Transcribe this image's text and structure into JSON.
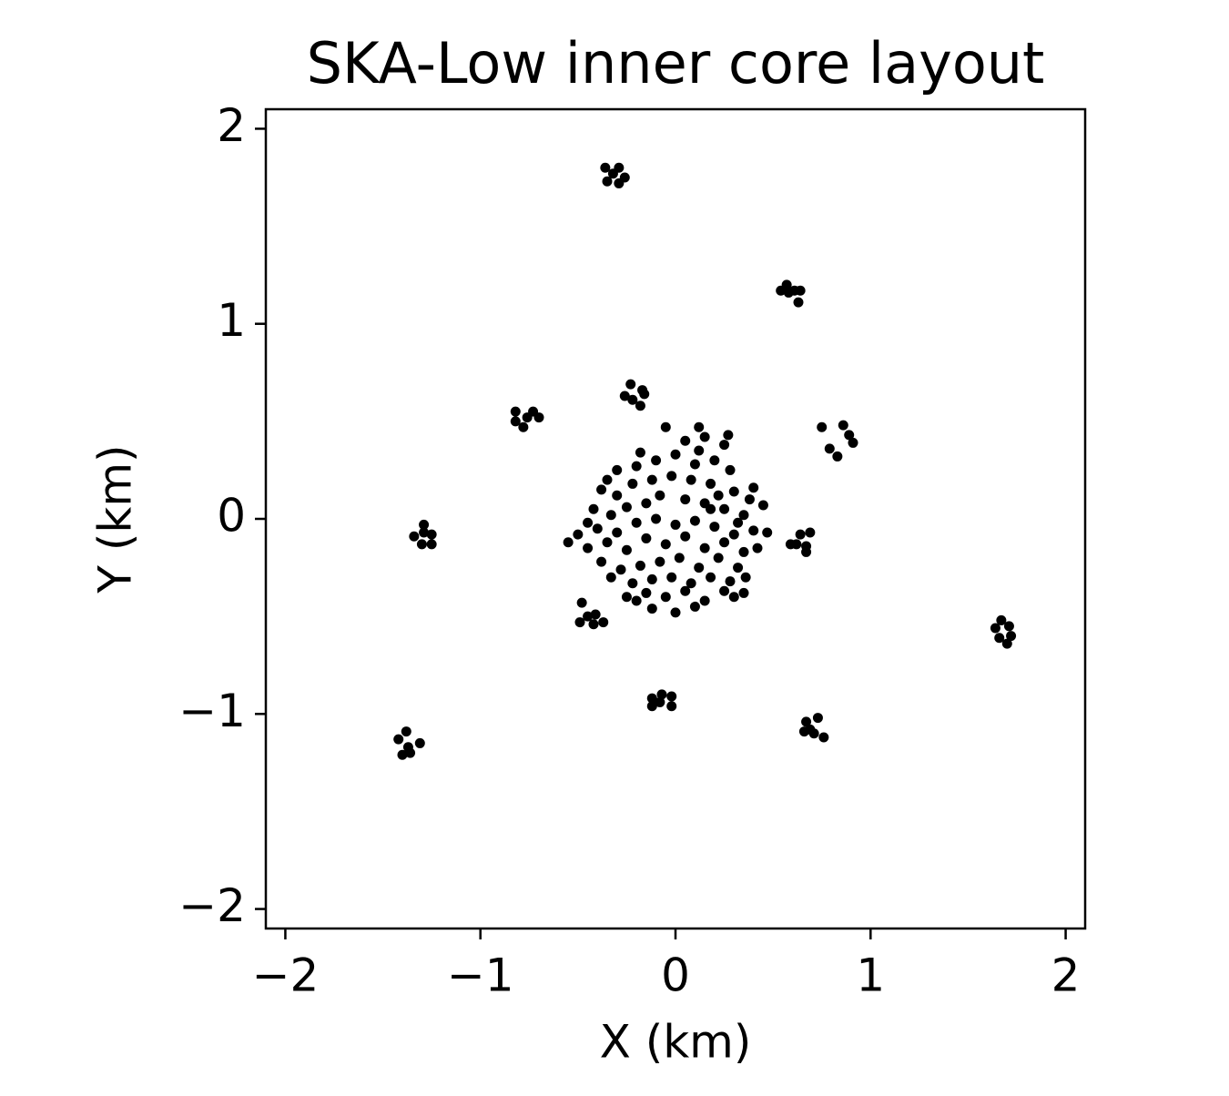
{
  "chart_data": {
    "type": "scatter",
    "title": "SKA-Low inner core layout",
    "x_label": "X (km)",
    "y_label": "Y (km)",
    "color": "#000000",
    "xlim": [
      -2.1,
      2.1
    ],
    "ylim": [
      -2.1,
      2.1
    ],
    "xticks": [
      {
        "value": -2,
        "label": "−2"
      },
      {
        "value": -1,
        "label": "−1"
      },
      0,
      1,
      2
    ],
    "yticks": [
      {
        "value": -2,
        "label": "−2"
      },
      {
        "value": -1,
        "label": "−1"
      },
      0,
      1,
      2
    ],
    "x": [
      -0.36,
      -0.29,
      -0.35,
      -0.29,
      -0.26,
      -0.32,
      0.54,
      0.57,
      0.61,
      0.64,
      0.63,
      0.58,
      -0.23,
      -0.17,
      -0.26,
      -0.22,
      -0.18,
      -0.16,
      -0.82,
      -0.73,
      -0.82,
      -0.78,
      -0.7,
      -0.76,
      0.75,
      0.86,
      0.89,
      0.91,
      0.79,
      0.83,
      -1.29,
      -1.25,
      -1.34,
      -1.3,
      -1.25,
      -1.29,
      0.59,
      0.64,
      0.69,
      0.67,
      0.67,
      0.62,
      -0.48,
      -0.45,
      -0.49,
      -0.42,
      -0.37,
      -0.41,
      1.67,
      1.71,
      1.64,
      1.66,
      1.7,
      1.72,
      -0.07,
      -0.12,
      -0.02,
      -0.12,
      -0.08,
      -0.02,
      0.73,
      0.67,
      0.66,
      0.71,
      0.76,
      0.69,
      -1.38,
      -1.42,
      -1.31,
      -1.37,
      -1.4,
      -1.36,
      -0.3,
      -0.2,
      -0.1,
      0.0,
      0.1,
      0.2,
      0.28,
      0.12,
      0.15,
      -0.05,
      0.27,
      0.25,
      -0.38,
      -0.3,
      -0.22,
      -0.12,
      -0.02,
      0.08,
      0.18,
      0.3,
      0.4,
      -0.42,
      -0.33,
      -0.25,
      -0.15,
      0.05,
      0.15,
      0.25,
      0.35,
      0.45,
      -0.5,
      -0.4,
      -0.3,
      -0.2,
      -0.1,
      0.0,
      0.1,
      0.2,
      0.3,
      0.4,
      0.47,
      -0.55,
      -0.45,
      -0.35,
      -0.25,
      -0.15,
      -0.05,
      0.05,
      0.15,
      0.25,
      0.35,
      0.42,
      -0.38,
      -0.28,
      -0.18,
      -0.08,
      0.02,
      0.12,
      0.22,
      0.32,
      -0.33,
      -0.22,
      -0.12,
      -0.02,
      0.08,
      0.18,
      0.28,
      0.36,
      -0.25,
      -0.15,
      -0.05,
      0.05,
      0.15,
      0.25,
      0.35,
      -0.12,
      0.0,
      0.1,
      -0.2,
      0.3,
      0.05,
      -0.18,
      0.22,
      -0.08,
      0.12,
      -0.45,
      0.38,
      0.18,
      -0.35,
      0.32
    ],
    "values": [
      1.8,
      1.8,
      1.73,
      1.72,
      1.75,
      1.77,
      1.17,
      1.2,
      1.17,
      1.17,
      1.11,
      1.16,
      0.69,
      0.66,
      0.63,
      0.61,
      0.58,
      0.64,
      0.55,
      0.55,
      0.5,
      0.47,
      0.52,
      0.52,
      0.47,
      0.48,
      0.43,
      0.39,
      0.36,
      0.32,
      -0.03,
      -0.08,
      -0.09,
      -0.13,
      -0.13,
      -0.07,
      -0.13,
      -0.08,
      -0.07,
      -0.14,
      -0.17,
      -0.13,
      -0.43,
      -0.5,
      -0.53,
      -0.54,
      -0.53,
      -0.49,
      -0.52,
      -0.55,
      -0.56,
      -0.61,
      -0.64,
      -0.6,
      -0.9,
      -0.92,
      -0.91,
      -0.96,
      -0.94,
      -0.96,
      -1.02,
      -1.04,
      -1.09,
      -1.1,
      -1.12,
      -1.08,
      -1.09,
      -1.13,
      -1.15,
      -1.17,
      -1.21,
      -1.2,
      0.25,
      0.27,
      0.3,
      0.33,
      0.28,
      0.3,
      0.25,
      0.47,
      0.42,
      0.47,
      0.43,
      0.38,
      0.15,
      0.12,
      0.18,
      0.2,
      0.22,
      0.2,
      0.18,
      0.14,
      0.16,
      0.05,
      0.02,
      0.06,
      0.08,
      0.1,
      0.08,
      0.05,
      0.02,
      0.07,
      -0.08,
      -0.05,
      -0.07,
      -0.02,
      0.0,
      -0.03,
      -0.01,
      -0.04,
      -0.08,
      -0.06,
      -0.07,
      -0.12,
      -0.15,
      -0.12,
      -0.16,
      -0.1,
      -0.13,
      -0.09,
      -0.15,
      -0.12,
      -0.17,
      -0.15,
      -0.22,
      -0.26,
      -0.24,
      -0.22,
      -0.2,
      -0.25,
      -0.2,
      -0.25,
      -0.3,
      -0.33,
      -0.31,
      -0.3,
      -0.33,
      -0.3,
      -0.32,
      -0.3,
      -0.4,
      -0.38,
      -0.4,
      -0.37,
      -0.42,
      -0.37,
      -0.38,
      -0.46,
      -0.48,
      -0.45,
      -0.42,
      -0.4,
      0.4,
      0.34,
      0.12,
      0.12,
      0.35,
      -0.02,
      0.1,
      0.05,
      0.2,
      -0.02
    ]
  }
}
